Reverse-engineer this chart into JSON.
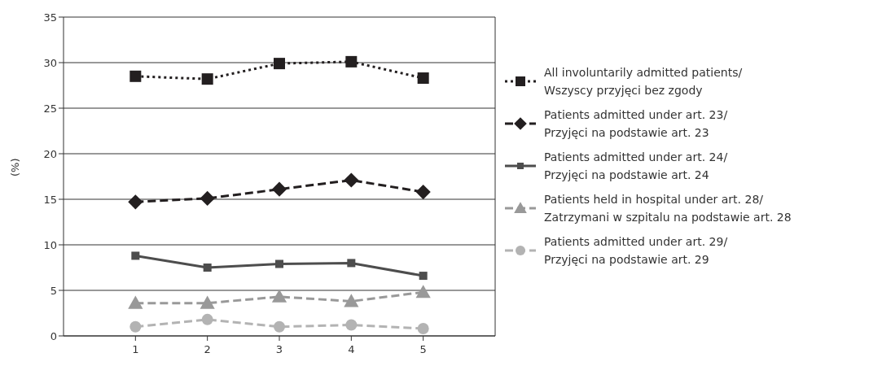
{
  "chart_data": {
    "type": "line",
    "ylabel": "(%)",
    "x": [
      1,
      2,
      3,
      4,
      5
    ],
    "xlim": [
      0,
      6
    ],
    "xticks": [
      1,
      2,
      3,
      4,
      5
    ],
    "ylim": [
      0,
      35
    ],
    "yticks": [
      0,
      5,
      10,
      15,
      20,
      25,
      30,
      35
    ],
    "grid": "y",
    "legend": "right",
    "series": [
      {
        "name": "All involuntarily admitted patients/\nWszyscy przyjęci bez zgody",
        "color": "#231f20",
        "marker": "square",
        "line_style": "dotted",
        "values": [
          28.5,
          28.2,
          29.9,
          30.1,
          28.3
        ]
      },
      {
        "name": "Patients admitted under art. 23/\nPrzyjęci na podstawie art. 23",
        "color": "#231f20",
        "marker": "diamond",
        "line_style": "dashed",
        "values": [
          14.7,
          15.1,
          16.1,
          17.1,
          15.8
        ]
      },
      {
        "name": "Patients admitted under art. 24/\nPrzyjęci na podstawie art. 24",
        "color": "#4d4d4d",
        "marker": "square",
        "line_style": "solid",
        "values": [
          8.8,
          7.5,
          7.9,
          8.0,
          6.6
        ]
      },
      {
        "name": "Patients held in hospital under art. 28/\nZatrzymani w szpitalu na podstawie art. 28",
        "color": "#999999",
        "marker": "triangle",
        "line_style": "dashed",
        "values": [
          3.6,
          3.6,
          4.3,
          3.8,
          4.8
        ]
      },
      {
        "name": "Patients admitted under art. 29/\nPrzyjęci na podstawie art. 29",
        "color": "#b3b3b3",
        "marker": "circle",
        "line_style": "dashed",
        "values": [
          1.0,
          1.8,
          1.0,
          1.2,
          0.8
        ]
      }
    ]
  }
}
